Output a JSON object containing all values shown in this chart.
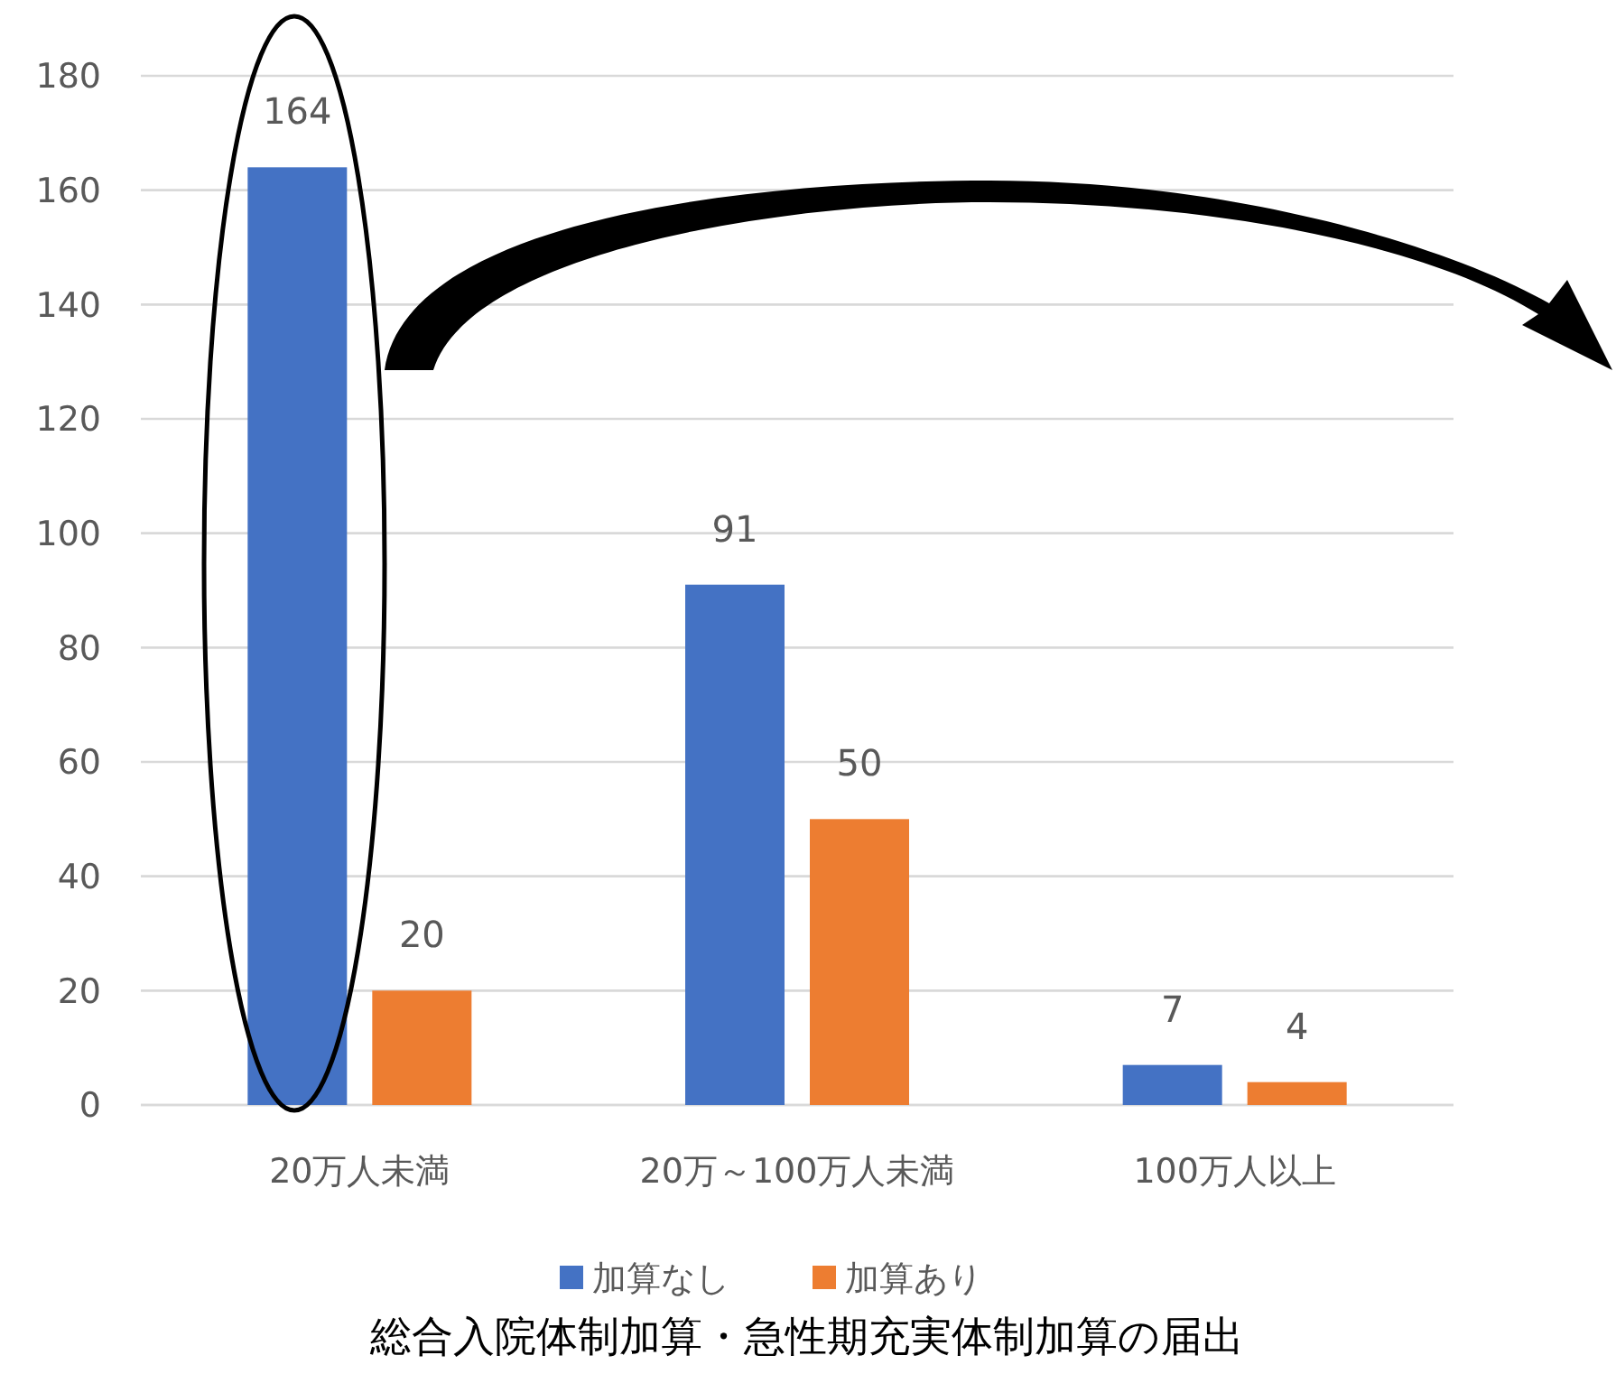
{
  "chart_data": {
    "type": "bar",
    "title": "総合入院体制加算・急性期充実体制加算の届出",
    "categories": [
      "20万人未満",
      "20万～100万人未満",
      "100万人以上"
    ],
    "series": [
      {
        "name": "加算なし",
        "color": "#4472c4",
        "values": [
          164,
          91,
          7
        ]
      },
      {
        "name": "加算あり",
        "color": "#ed7d31",
        "values": [
          20,
          50,
          4
        ]
      }
    ],
    "ylim": [
      0,
      180
    ],
    "yticks": [
      0,
      20,
      40,
      60,
      80,
      100,
      120,
      140,
      160,
      180
    ],
    "grid": "y",
    "legend": "bottom",
    "data_labels": true
  }
}
